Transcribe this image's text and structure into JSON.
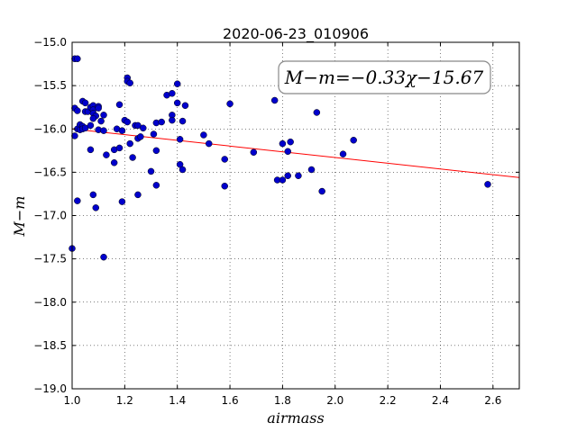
{
  "chart_data": {
    "type": "scatter",
    "title": "2020-06-23_010906",
    "xlabel": "airmass",
    "ylabel": "M−m",
    "xlim": [
      1.0,
      2.7
    ],
    "ylim": [
      -19.0,
      -15.0
    ],
    "y_inverted": false,
    "x_ticks": [
      1.0,
      1.2,
      1.4,
      1.6,
      1.8,
      2.0,
      2.2,
      2.4,
      2.6
    ],
    "x_tick_labels": [
      "1.0",
      "1.2",
      "1.4",
      "1.6",
      "1.8",
      "2.0",
      "2.2",
      "2.4",
      "2.6"
    ],
    "y_ticks": [
      -15.0,
      -15.5,
      -16.0,
      -16.5,
      -17.0,
      -17.5,
      -18.0,
      -18.5,
      -19.0
    ],
    "y_tick_labels": [
      "−15.0",
      "−15.5",
      "−16.0",
      "−16.5",
      "−17.0",
      "−17.5",
      "−18.0",
      "−18.5",
      "−19.0"
    ],
    "grid": true,
    "annotation": "M−m=−0.33χ−15.67",
    "fit_line": {
      "slope": -0.33,
      "intercept": -15.67,
      "color": "#ff0000"
    },
    "point_color": "#0000cc",
    "points": [
      {
        "x": 1.0,
        "y": -17.38
      },
      {
        "x": 1.01,
        "y": -15.19
      },
      {
        "x": 1.02,
        "y": -15.19
      },
      {
        "x": 1.01,
        "y": -15.76
      },
      {
        "x": 1.02,
        "y": -15.79
      },
      {
        "x": 1.01,
        "y": -16.08
      },
      {
        "x": 1.02,
        "y": -16.0
      },
      {
        "x": 1.03,
        "y": -15.95
      },
      {
        "x": 1.03,
        "y": -16.01
      },
      {
        "x": 1.04,
        "y": -15.97
      },
      {
        "x": 1.04,
        "y": -16.0
      },
      {
        "x": 1.05,
        "y": -15.99
      },
      {
        "x": 1.04,
        "y": -15.68
      },
      {
        "x": 1.05,
        "y": -15.7
      },
      {
        "x": 1.05,
        "y": -15.8
      },
      {
        "x": 1.06,
        "y": -15.8
      },
      {
        "x": 1.07,
        "y": -15.96
      },
      {
        "x": 1.07,
        "y": -15.75
      },
      {
        "x": 1.08,
        "y": -15.73
      },
      {
        "x": 1.08,
        "y": -15.78
      },
      {
        "x": 1.08,
        "y": -15.82
      },
      {
        "x": 1.09,
        "y": -15.85
      },
      {
        "x": 1.08,
        "y": -15.88
      },
      {
        "x": 1.1,
        "y": -15.74
      },
      {
        "x": 1.1,
        "y": -15.76
      },
      {
        "x": 1.1,
        "y": -16.01
      },
      {
        "x": 1.12,
        "y": -16.02
      },
      {
        "x": 1.12,
        "y": -15.84
      },
      {
        "x": 1.11,
        "y": -15.91
      },
      {
        "x": 1.07,
        "y": -16.24
      },
      {
        "x": 1.02,
        "y": -16.83
      },
      {
        "x": 1.08,
        "y": -16.76
      },
      {
        "x": 1.09,
        "y": -16.91
      },
      {
        "x": 1.12,
        "y": -17.48
      },
      {
        "x": 1.13,
        "y": -16.3
      },
      {
        "x": 1.16,
        "y": -16.24
      },
      {
        "x": 1.16,
        "y": -16.39
      },
      {
        "x": 1.17,
        "y": -16.0
      },
      {
        "x": 1.18,
        "y": -15.72
      },
      {
        "x": 1.18,
        "y": -16.22
      },
      {
        "x": 1.19,
        "y": -16.02
      },
      {
        "x": 1.19,
        "y": -16.84
      },
      {
        "x": 1.2,
        "y": -15.9
      },
      {
        "x": 1.21,
        "y": -15.41
      },
      {
        "x": 1.21,
        "y": -15.45
      },
      {
        "x": 1.22,
        "y": -15.47
      },
      {
        "x": 1.21,
        "y": -15.92
      },
      {
        "x": 1.22,
        "y": -16.17
      },
      {
        "x": 1.23,
        "y": -16.33
      },
      {
        "x": 1.24,
        "y": -15.96
      },
      {
        "x": 1.25,
        "y": -16.11
      },
      {
        "x": 1.25,
        "y": -15.96
      },
      {
        "x": 1.26,
        "y": -16.09
      },
      {
        "x": 1.25,
        "y": -16.76
      },
      {
        "x": 1.27,
        "y": -15.99
      },
      {
        "x": 1.3,
        "y": -16.49
      },
      {
        "x": 1.31,
        "y": -16.06
      },
      {
        "x": 1.32,
        "y": -16.25
      },
      {
        "x": 1.32,
        "y": -15.93
      },
      {
        "x": 1.32,
        "y": -16.65
      },
      {
        "x": 1.34,
        "y": -15.92
      },
      {
        "x": 1.36,
        "y": -15.61
      },
      {
        "x": 1.38,
        "y": -15.59
      },
      {
        "x": 1.38,
        "y": -15.84
      },
      {
        "x": 1.38,
        "y": -15.9
      },
      {
        "x": 1.4,
        "y": -15.7
      },
      {
        "x": 1.4,
        "y": -15.48
      },
      {
        "x": 1.41,
        "y": -16.12
      },
      {
        "x": 1.41,
        "y": -16.41
      },
      {
        "x": 1.42,
        "y": -16.47
      },
      {
        "x": 1.42,
        "y": -15.91
      },
      {
        "x": 1.43,
        "y": -15.73
      },
      {
        "x": 1.5,
        "y": -16.07
      },
      {
        "x": 1.52,
        "y": -16.17
      },
      {
        "x": 1.58,
        "y": -16.35
      },
      {
        "x": 1.58,
        "y": -16.66
      },
      {
        "x": 1.6,
        "y": -15.71
      },
      {
        "x": 1.69,
        "y": -16.27
      },
      {
        "x": 1.77,
        "y": -15.67
      },
      {
        "x": 1.78,
        "y": -16.59
      },
      {
        "x": 1.8,
        "y": -16.59
      },
      {
        "x": 1.8,
        "y": -16.17
      },
      {
        "x": 1.82,
        "y": -16.26
      },
      {
        "x": 1.82,
        "y": -16.54
      },
      {
        "x": 1.83,
        "y": -16.15
      },
      {
        "x": 1.86,
        "y": -16.54
      },
      {
        "x": 1.91,
        "y": -16.47
      },
      {
        "x": 1.93,
        "y": -15.81
      },
      {
        "x": 1.95,
        "y": -16.72
      },
      {
        "x": 2.03,
        "y": -16.29
      },
      {
        "x": 2.07,
        "y": -16.13
      },
      {
        "x": 2.58,
        "y": -16.64
      }
    ]
  }
}
